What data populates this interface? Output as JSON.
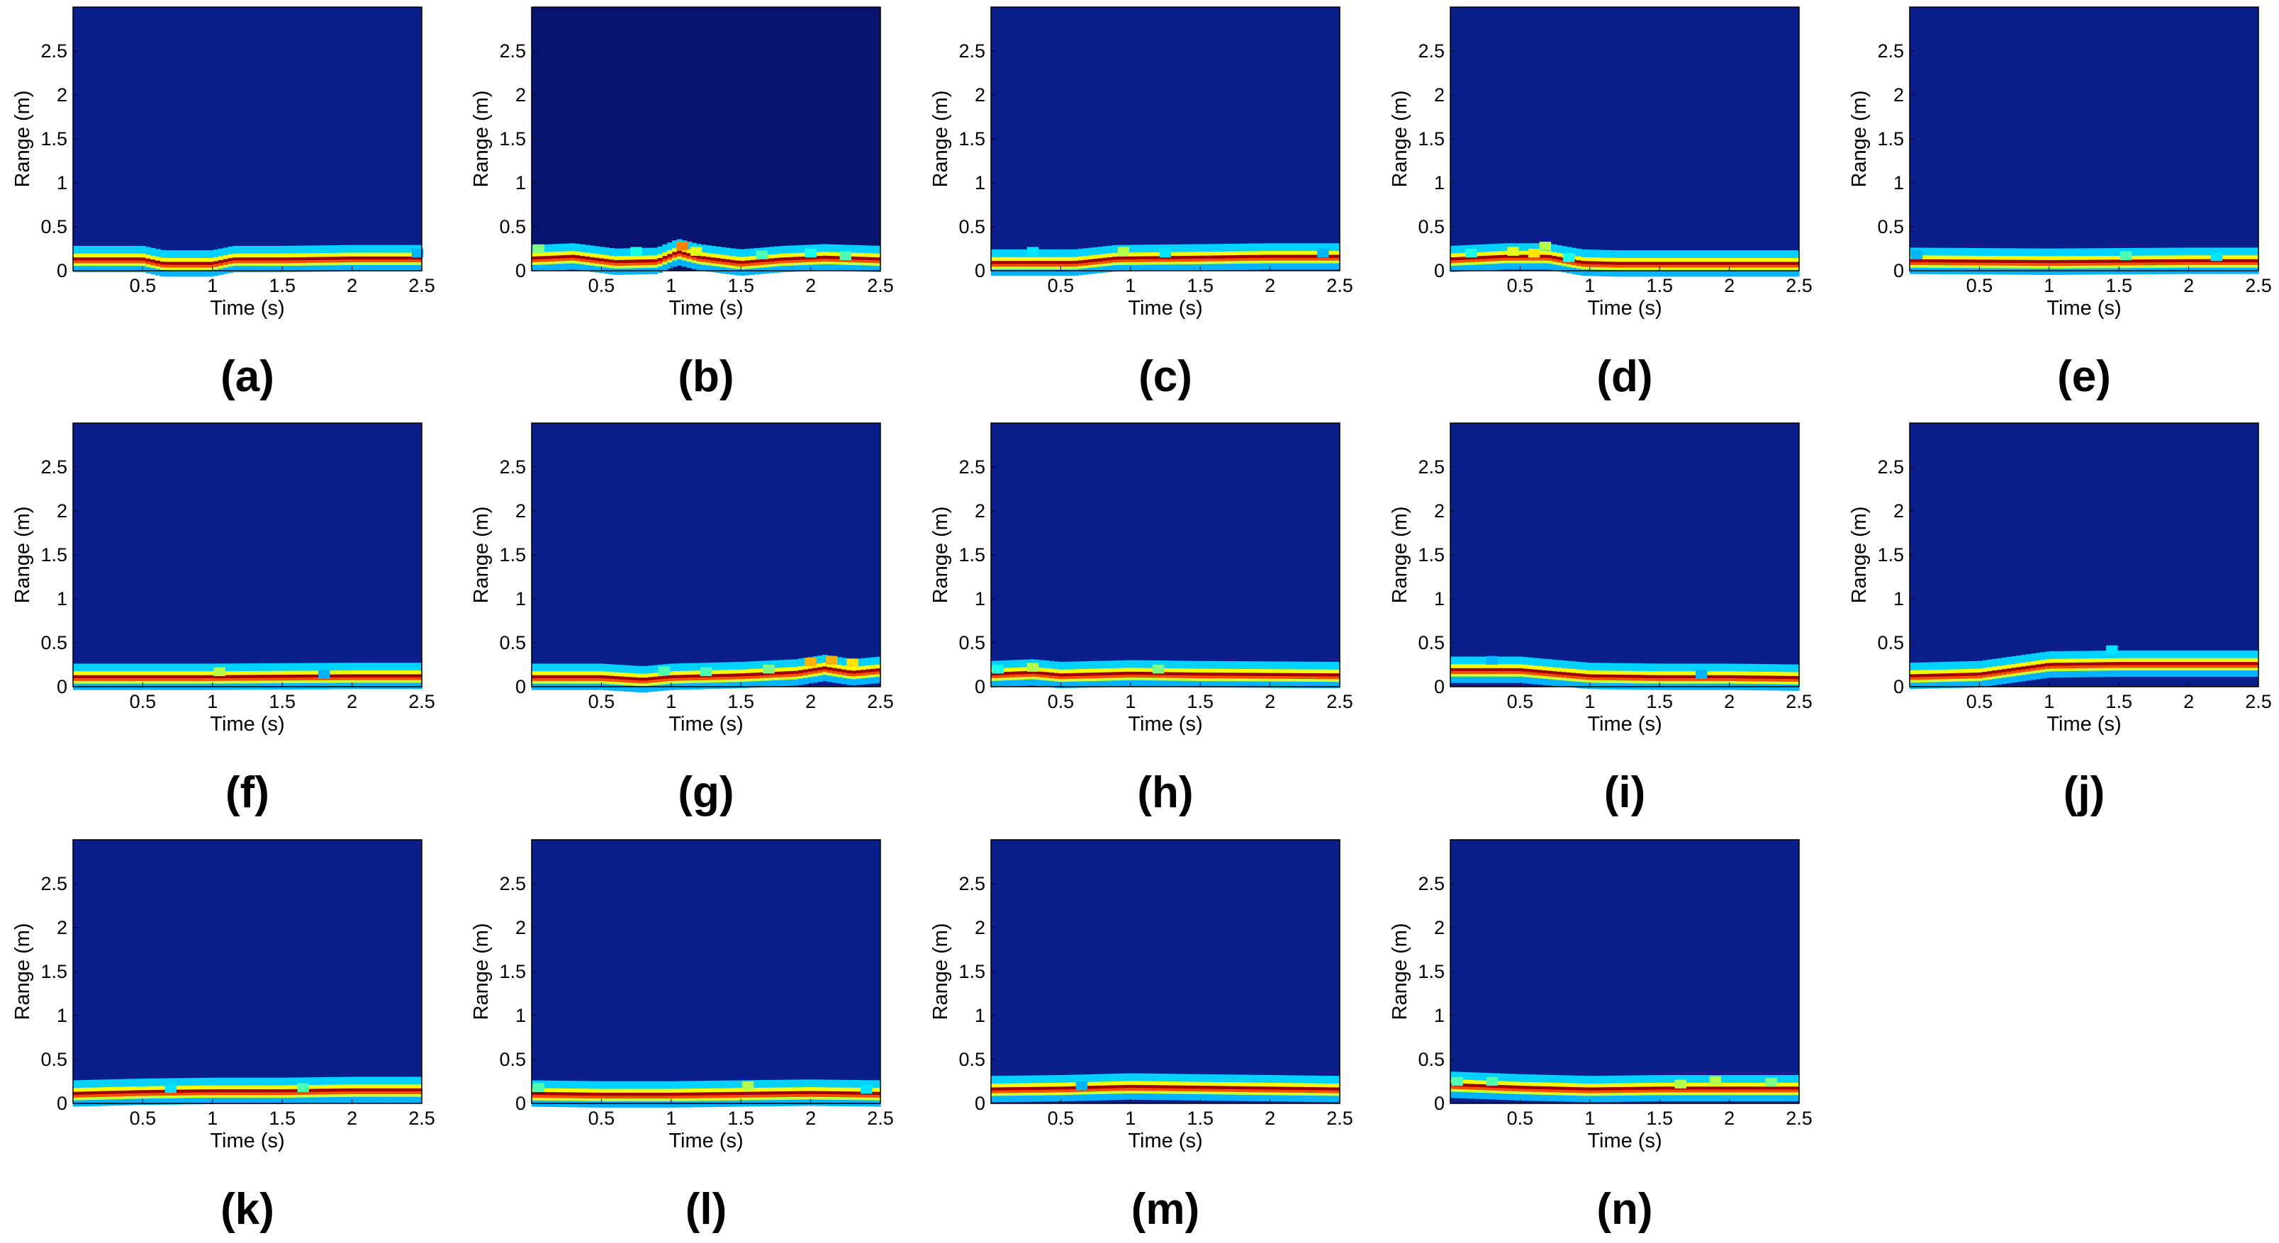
{
  "figure": {
    "ylabel": "Range (m)",
    "xlabel": "Time (s)",
    "colors": {
      "background": "#0a1e8c",
      "background_alt": "#06146e",
      "colormap": "jet"
    }
  },
  "chart_data": [
    {
      "label": "(a)",
      "type": "heatmap",
      "xlabel": "Time (s)",
      "ylabel": "Range (m)",
      "xlim": [
        0,
        2.5
      ],
      "ylim": [
        0,
        3
      ],
      "xticks": [
        "0.5",
        "1",
        "1.5",
        "2",
        "2.5"
      ],
      "yticks": [
        "0",
        "0.5",
        "1",
        "1.5",
        "2",
        "2.5"
      ],
      "ridge": {
        "x": [
          0,
          0.5,
          0.65,
          1.0,
          1.15,
          1.5,
          2.0,
          2.5
        ],
        "range": [
          0.12,
          0.12,
          0.07,
          0.07,
          0.12,
          0.12,
          0.13,
          0.13
        ]
      },
      "spots": [
        {
          "x": 2.47,
          "range": 0.2,
          "level": 0.3
        }
      ]
    },
    {
      "label": "(b)",
      "type": "heatmap",
      "xlabel": "Time (s)",
      "ylabel": "Range (m)",
      "xlim": [
        0,
        2.5
      ],
      "ylim": [
        0,
        3
      ],
      "xticks": [
        "0.5",
        "1",
        "1.5",
        "2",
        "2.5"
      ],
      "yticks": [
        "0",
        "0.5",
        "1",
        "1.5",
        "2",
        "2.5"
      ],
      "ridge": {
        "x": [
          0,
          0.3,
          0.6,
          0.9,
          1.05,
          1.2,
          1.5,
          1.8,
          2.1,
          2.5
        ],
        "range": [
          0.13,
          0.15,
          0.09,
          0.1,
          0.2,
          0.14,
          0.08,
          0.12,
          0.14,
          0.12
        ]
      },
      "spots": [
        {
          "x": 0.05,
          "range": 0.25,
          "level": 0.5
        },
        {
          "x": 1.08,
          "range": 0.28,
          "level": 0.75
        },
        {
          "x": 1.18,
          "range": 0.22,
          "level": 0.6
        },
        {
          "x": 0.75,
          "range": 0.22,
          "level": 0.4
        },
        {
          "x": 1.65,
          "range": 0.18,
          "level": 0.45
        },
        {
          "x": 2.0,
          "range": 0.2,
          "level": 0.4
        },
        {
          "x": 2.25,
          "range": 0.17,
          "level": 0.45
        }
      ]
    },
    {
      "label": "(c)",
      "type": "heatmap",
      "xlabel": "Time (s)",
      "ylabel": "Range (m)",
      "xlim": [
        0,
        2.5
      ],
      "ylim": [
        0,
        3
      ],
      "xticks": [
        "0.5",
        "1",
        "1.5",
        "2",
        "2.5"
      ],
      "yticks": [
        "0",
        "0.5",
        "1",
        "1.5",
        "2",
        "2.5"
      ],
      "ridge": {
        "x": [
          0,
          0.6,
          0.9,
          1.5,
          2.0,
          2.5
        ],
        "range": [
          0.08,
          0.08,
          0.13,
          0.14,
          0.15,
          0.15
        ]
      },
      "spots": [
        {
          "x": 0.3,
          "range": 0.22,
          "level": 0.35
        },
        {
          "x": 0.95,
          "range": 0.22,
          "level": 0.55
        },
        {
          "x": 1.25,
          "range": 0.2,
          "level": 0.35
        },
        {
          "x": 2.38,
          "range": 0.2,
          "level": 0.3
        }
      ]
    },
    {
      "label": "(d)",
      "type": "heatmap",
      "xlabel": "Time (s)",
      "ylabel": "Range (m)",
      "xlim": [
        0,
        2.5
      ],
      "ylim": [
        0,
        3
      ],
      "xticks": [
        "0.5",
        "1",
        "1.5",
        "2",
        "2.5"
      ],
      "yticks": [
        "0",
        "0.5",
        "1",
        "1.5",
        "2",
        "2.5"
      ],
      "ridge": {
        "x": [
          0,
          0.4,
          0.7,
          0.95,
          1.2,
          2.5
        ],
        "range": [
          0.12,
          0.15,
          0.15,
          0.08,
          0.07,
          0.07
        ]
      },
      "spots": [
        {
          "x": 0.45,
          "range": 0.22,
          "level": 0.6
        },
        {
          "x": 0.6,
          "range": 0.2,
          "level": 0.65
        },
        {
          "x": 0.68,
          "range": 0.28,
          "level": 0.55
        },
        {
          "x": 0.15,
          "range": 0.2,
          "level": 0.4
        },
        {
          "x": 0.85,
          "range": 0.15,
          "level": 0.4
        }
      ]
    },
    {
      "label": "(e)",
      "type": "heatmap",
      "xlabel": "Time (s)",
      "ylabel": "Range (m)",
      "xlim": [
        0,
        2.5
      ],
      "ylim": [
        0,
        3
      ],
      "xticks": [
        "0.5",
        "1",
        "1.5",
        "2",
        "2.5"
      ],
      "yticks": [
        "0",
        "0.5",
        "1",
        "1.5",
        "2",
        "2.5"
      ],
      "ridge": {
        "x": [
          0,
          1.0,
          2.0,
          2.5
        ],
        "range": [
          0.1,
          0.09,
          0.1,
          0.1
        ]
      },
      "spots": [
        {
          "x": 0.05,
          "range": 0.18,
          "level": 0.3
        },
        {
          "x": 1.55,
          "range": 0.17,
          "level": 0.45
        },
        {
          "x": 2.2,
          "range": 0.16,
          "level": 0.35
        }
      ]
    },
    {
      "label": "(f)",
      "type": "heatmap",
      "xlabel": "Time (s)",
      "ylabel": "Range (m)",
      "xlim": [
        0,
        2.5
      ],
      "ylim": [
        0,
        3
      ],
      "xticks": [
        "0.5",
        "1",
        "1.5",
        "2",
        "2.5"
      ],
      "yticks": [
        "0",
        "0.5",
        "1",
        "1.5",
        "2",
        "2.5"
      ],
      "ridge": {
        "x": [
          0,
          1.0,
          2.0,
          2.5
        ],
        "range": [
          0.1,
          0.1,
          0.11,
          0.11
        ]
      },
      "spots": [
        {
          "x": 1.05,
          "range": 0.17,
          "level": 0.55
        },
        {
          "x": 1.8,
          "range": 0.14,
          "level": 0.3
        }
      ]
    },
    {
      "label": "(g)",
      "type": "heatmap",
      "xlabel": "Time (s)",
      "ylabel": "Range (m)",
      "xlim": [
        0,
        2.5
      ],
      "ylim": [
        0,
        3
      ],
      "xticks": [
        "0.5",
        "1",
        "1.5",
        "2",
        "2.5"
      ],
      "yticks": [
        "0",
        "0.5",
        "1",
        "1.5",
        "2",
        "2.5"
      ],
      "ridge": {
        "x": [
          0,
          0.5,
          0.8,
          1.0,
          1.5,
          1.9,
          2.1,
          2.3,
          2.5
        ],
        "range": [
          0.1,
          0.1,
          0.07,
          0.1,
          0.12,
          0.15,
          0.2,
          0.15,
          0.18
        ]
      },
      "spots": [
        {
          "x": 0.95,
          "range": 0.18,
          "level": 0.45
        },
        {
          "x": 1.7,
          "range": 0.2,
          "level": 0.5
        },
        {
          "x": 2.0,
          "range": 0.28,
          "level": 0.7
        },
        {
          "x": 2.15,
          "range": 0.3,
          "level": 0.7
        },
        {
          "x": 2.3,
          "range": 0.27,
          "level": 0.65
        },
        {
          "x": 1.25,
          "range": 0.17,
          "level": 0.45
        }
      ]
    },
    {
      "label": "(h)",
      "type": "heatmap",
      "xlabel": "Time (s)",
      "ylabel": "Range (m)",
      "xlim": [
        0,
        2.5
      ],
      "ylim": [
        0,
        3
      ],
      "xticks": [
        "0.5",
        "1",
        "1.5",
        "2",
        "2.5"
      ],
      "yticks": [
        "0",
        "0.5",
        "1",
        "1.5",
        "2",
        "2.5"
      ],
      "ridge": {
        "x": [
          0,
          0.3,
          0.5,
          1.0,
          1.5,
          2.5
        ],
        "range": [
          0.13,
          0.15,
          0.12,
          0.14,
          0.13,
          0.12
        ]
      },
      "spots": [
        {
          "x": 0.3,
          "range": 0.22,
          "level": 0.55
        },
        {
          "x": 0.05,
          "range": 0.2,
          "level": 0.4
        },
        {
          "x": 1.2,
          "range": 0.2,
          "level": 0.5
        }
      ]
    },
    {
      "label": "(i)",
      "type": "heatmap",
      "xlabel": "Time (s)",
      "ylabel": "Range (m)",
      "xlim": [
        0,
        2.5
      ],
      "ylim": [
        0,
        3
      ],
      "xticks": [
        "0.5",
        "1",
        "1.5",
        "2",
        "2.5"
      ],
      "yticks": [
        "0",
        "0.5",
        "1",
        "1.5",
        "2",
        "2.5"
      ],
      "ridge": {
        "x": [
          0,
          0.5,
          1.0,
          1.5,
          2.0,
          2.5
        ],
        "range": [
          0.18,
          0.18,
          0.11,
          0.1,
          0.1,
          0.09
        ]
      },
      "spots": [
        {
          "x": 0.3,
          "range": 0.3,
          "level": 0.3
        },
        {
          "x": 1.8,
          "range": 0.14,
          "level": 0.3
        }
      ]
    },
    {
      "label": "(j)",
      "type": "heatmap",
      "xlabel": "Time (s)",
      "ylabel": "Range (m)",
      "xlim": [
        0,
        2.5
      ],
      "ylim": [
        0,
        3
      ],
      "xticks": [
        "0.5",
        "1",
        "1.5",
        "2",
        "2.5"
      ],
      "yticks": [
        "0",
        "0.5",
        "1",
        "1.5",
        "2",
        "2.5"
      ],
      "ridge": {
        "x": [
          0,
          0.5,
          1.0,
          1.5,
          2.0,
          2.5
        ],
        "range": [
          0.11,
          0.13,
          0.24,
          0.25,
          0.25,
          0.25
        ]
      },
      "spots": [
        {
          "x": 1.45,
          "range": 0.42,
          "level": 0.35
        }
      ]
    },
    {
      "label": "(k)",
      "type": "heatmap",
      "xlabel": "Time (s)",
      "ylabel": "Range (m)",
      "xlim": [
        0,
        2.5
      ],
      "ylim": [
        0,
        3
      ],
      "xticks": [
        "0.5",
        "1",
        "1.5",
        "2",
        "2.5"
      ],
      "yticks": [
        "0",
        "0.5",
        "1",
        "1.5",
        "2",
        "2.5"
      ],
      "ridge": {
        "x": [
          0,
          0.5,
          1.0,
          1.5,
          2.0,
          2.5
        ],
        "range": [
          0.1,
          0.12,
          0.13,
          0.13,
          0.14,
          0.14
        ]
      },
      "spots": [
        {
          "x": 1.65,
          "range": 0.18,
          "level": 0.45
        },
        {
          "x": 0.7,
          "range": 0.17,
          "level": 0.35
        }
      ]
    },
    {
      "label": "(l)",
      "type": "heatmap",
      "xlabel": "Time (s)",
      "ylabel": "Range (m)",
      "xlim": [
        0,
        2.5
      ],
      "ylim": [
        0,
        3
      ],
      "xticks": [
        "0.5",
        "1",
        "1.5",
        "2",
        "2.5"
      ],
      "yticks": [
        "0",
        "0.5",
        "1",
        "1.5",
        "2",
        "2.5"
      ],
      "ridge": {
        "x": [
          0,
          0.5,
          1.0,
          1.5,
          2.0,
          2.5
        ],
        "range": [
          0.1,
          0.09,
          0.09,
          0.1,
          0.11,
          0.1
        ]
      },
      "spots": [
        {
          "x": 0.05,
          "range": 0.18,
          "level": 0.45
        },
        {
          "x": 1.55,
          "range": 0.2,
          "level": 0.55
        },
        {
          "x": 2.4,
          "range": 0.16,
          "level": 0.35
        }
      ]
    },
    {
      "label": "(m)",
      "type": "heatmap",
      "xlabel": "Time (s)",
      "ylabel": "Range (m)",
      "xlim": [
        0,
        2.5
      ],
      "ylim": [
        0,
        3
      ],
      "xticks": [
        "0.5",
        "1",
        "1.5",
        "2",
        "2.5"
      ],
      "yticks": [
        "0",
        "0.5",
        "1",
        "1.5",
        "2",
        "2.5"
      ],
      "ridge": {
        "x": [
          0,
          0.5,
          1.0,
          1.5,
          2.0,
          2.5
        ],
        "range": [
          0.15,
          0.16,
          0.18,
          0.17,
          0.16,
          0.15
        ]
      },
      "spots": [
        {
          "x": 0.65,
          "range": 0.2,
          "level": 0.3
        }
      ]
    },
    {
      "label": "(n)",
      "type": "heatmap",
      "xlabel": "Time (s)",
      "ylabel": "Range (m)",
      "xlim": [
        0,
        2.5
      ],
      "ylim": [
        0,
        3
      ],
      "xticks": [
        "0.5",
        "1",
        "1.5",
        "2",
        "2.5"
      ],
      "yticks": [
        "0",
        "0.5",
        "1",
        "1.5",
        "2",
        "2.5"
      ],
      "ridge": {
        "x": [
          0,
          0.5,
          1.0,
          1.5,
          2.0,
          2.5
        ],
        "range": [
          0.2,
          0.17,
          0.15,
          0.16,
          0.16,
          0.16
        ]
      },
      "spots": [
        {
          "x": 0.05,
          "range": 0.25,
          "level": 0.45
        },
        {
          "x": 0.3,
          "range": 0.25,
          "level": 0.45
        },
        {
          "x": 1.65,
          "range": 0.22,
          "level": 0.55
        },
        {
          "x": 1.9,
          "range": 0.26,
          "level": 0.55
        },
        {
          "x": 2.3,
          "range": 0.24,
          "level": 0.5
        }
      ]
    }
  ]
}
